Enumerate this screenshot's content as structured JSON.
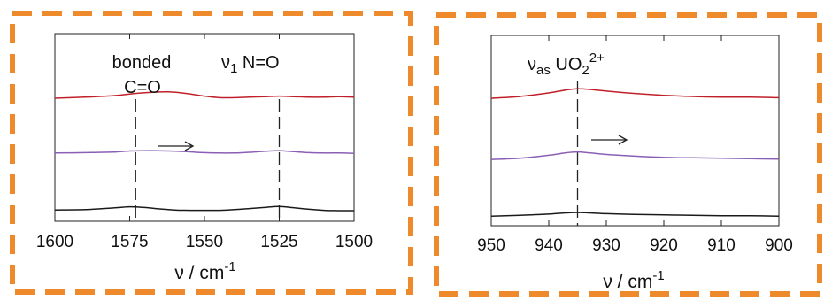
{
  "chart_data": [
    {
      "type": "line",
      "x_reversed": true,
      "xlim": [
        1600,
        1500
      ],
      "xticks": [
        "1600",
        "1575",
        "1550",
        "1525",
        "1500"
      ],
      "xlabel": {
        "base": "ν / cm",
        "sup": "-1"
      },
      "y_ticks_shown": false,
      "annotations": [
        {
          "lines": [
            "bonded",
            "C=O"
          ],
          "x": 1573
        },
        {
          "symbol": "ν",
          "sub": "1",
          "text": " N=O",
          "x": 1525
        }
      ],
      "arrow": {
        "direction": "right"
      },
      "series": [
        {
          "color": "#c0202a",
          "x": [
            1600,
            1590,
            1580,
            1575,
            1568,
            1562,
            1556,
            1550,
            1545,
            1540,
            1535,
            1530,
            1525,
            1520,
            1515,
            1510,
            1505,
            1500
          ],
          "y": [
            0.65,
            0.67,
            0.7,
            0.73,
            0.76,
            0.77,
            0.74,
            0.69,
            0.66,
            0.66,
            0.67,
            0.68,
            0.69,
            0.68,
            0.67,
            0.67,
            0.68,
            0.67
          ]
        },
        {
          "color": "#8a5fb5",
          "x": [
            1600,
            1590,
            1580,
            1575,
            1568,
            1562,
            1556,
            1550,
            1545,
            1540,
            1535,
            1530,
            1525,
            1520,
            1515,
            1510,
            1505,
            1500
          ],
          "y": [
            0.4,
            0.41,
            0.43,
            0.46,
            0.47,
            0.46,
            0.44,
            0.41,
            0.4,
            0.4,
            0.42,
            0.45,
            0.47,
            0.44,
            0.41,
            0.4,
            0.4,
            0.39
          ]
        },
        {
          "color": "#1a1a1a",
          "x": [
            1600,
            1590,
            1580,
            1575,
            1570,
            1565,
            1560,
            1555,
            1550,
            1545,
            1540,
            1535,
            1530,
            1525,
            1520,
            1515,
            1510,
            1505,
            1500
          ],
          "y": [
            0.07,
            0.08,
            0.13,
            0.16,
            0.14,
            0.1,
            0.07,
            0.06,
            0.06,
            0.06,
            0.08,
            0.11,
            0.14,
            0.17,
            0.13,
            0.09,
            0.06,
            0.05,
            0.05
          ]
        }
      ]
    },
    {
      "type": "line",
      "x_reversed": true,
      "xlim": [
        950,
        900
      ],
      "xticks": [
        "950",
        "940",
        "930",
        "920",
        "910",
        "900"
      ],
      "xlabel": {
        "base": "ν / cm",
        "sup": "-1"
      },
      "y_ticks_shown": false,
      "annotations": [
        {
          "symbol": "ν",
          "sub": "as",
          "text": " UO",
          "sub2": "2",
          "sup": "2+",
          "x": 935
        }
      ],
      "arrow": {
        "direction": "right"
      },
      "series": [
        {
          "color": "#c0202a",
          "x": [
            950,
            945,
            940,
            937,
            935,
            933,
            930,
            925,
            920,
            915,
            910,
            905,
            900
          ],
          "y": [
            0.69,
            0.72,
            0.78,
            0.83,
            0.85,
            0.84,
            0.81,
            0.77,
            0.74,
            0.72,
            0.71,
            0.71,
            0.7
          ]
        },
        {
          "color": "#8a5fb5",
          "x": [
            950,
            945,
            940,
            937,
            935,
            933,
            930,
            925,
            920,
            915,
            910,
            905,
            900
          ],
          "y": [
            0.37,
            0.4,
            0.47,
            0.53,
            0.55,
            0.53,
            0.49,
            0.45,
            0.42,
            0.41,
            0.4,
            0.39,
            0.38
          ]
        },
        {
          "color": "#1a1a1a",
          "x": [
            950,
            945,
            940,
            937,
            935,
            933,
            930,
            925,
            920,
            915,
            910,
            905,
            900
          ],
          "y": [
            0.04,
            0.06,
            0.09,
            0.12,
            0.13,
            0.12,
            0.1,
            0.08,
            0.07,
            0.06,
            0.05,
            0.05,
            0.04
          ]
        }
      ]
    }
  ]
}
